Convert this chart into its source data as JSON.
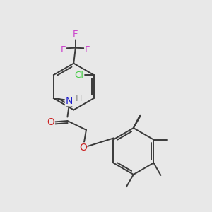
{
  "background_color": "#e8e8e8",
  "bond_color": "#3a3a3a",
  "bond_width": 1.4,
  "atom_colors": {
    "F": "#cc44cc",
    "Cl": "#44cc44",
    "N": "#1a1acc",
    "H": "#888888",
    "O": "#cc2222",
    "C": "#3a3a3a"
  },
  "figsize": [
    3.0,
    3.0
  ],
  "dpi": 100,
  "xlim": [
    0.0,
    6.0
  ],
  "ylim": [
    0.0,
    6.5
  ]
}
